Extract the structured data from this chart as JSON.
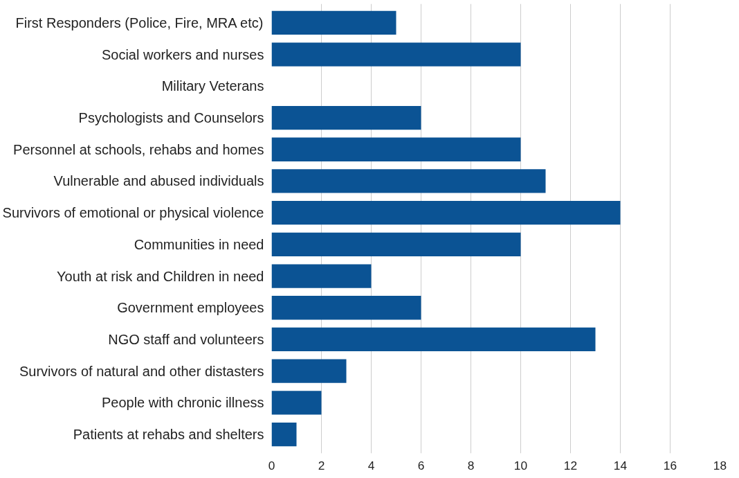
{
  "chart_data": {
    "type": "bar",
    "orientation": "horizontal",
    "categories": [
      "First Responders (Police, Fire, MRA etc)",
      "Social workers and nurses",
      "Military Veterans",
      "Psychologists and Counselors",
      "Personnel at schools, rehabs and homes",
      "Vulnerable and abused individuals",
      "Survivors of emotional or physical violence",
      "Communities in need",
      "Youth at risk and Children in need",
      "Government employees",
      "NGO staff and volunteers",
      "Survivors of natural and other distasters",
      "People with chronic illness",
      "Patients at rehabs and shelters"
    ],
    "values": [
      5,
      10,
      0,
      6,
      10,
      11,
      14,
      10,
      4,
      6,
      13,
      3,
      2,
      1
    ],
    "color": "#0b5394",
    "xlim": [
      0,
      18
    ],
    "xticks": [
      0,
      2,
      4,
      6,
      8,
      10,
      12,
      14,
      16,
      18
    ],
    "grid": "x"
  }
}
